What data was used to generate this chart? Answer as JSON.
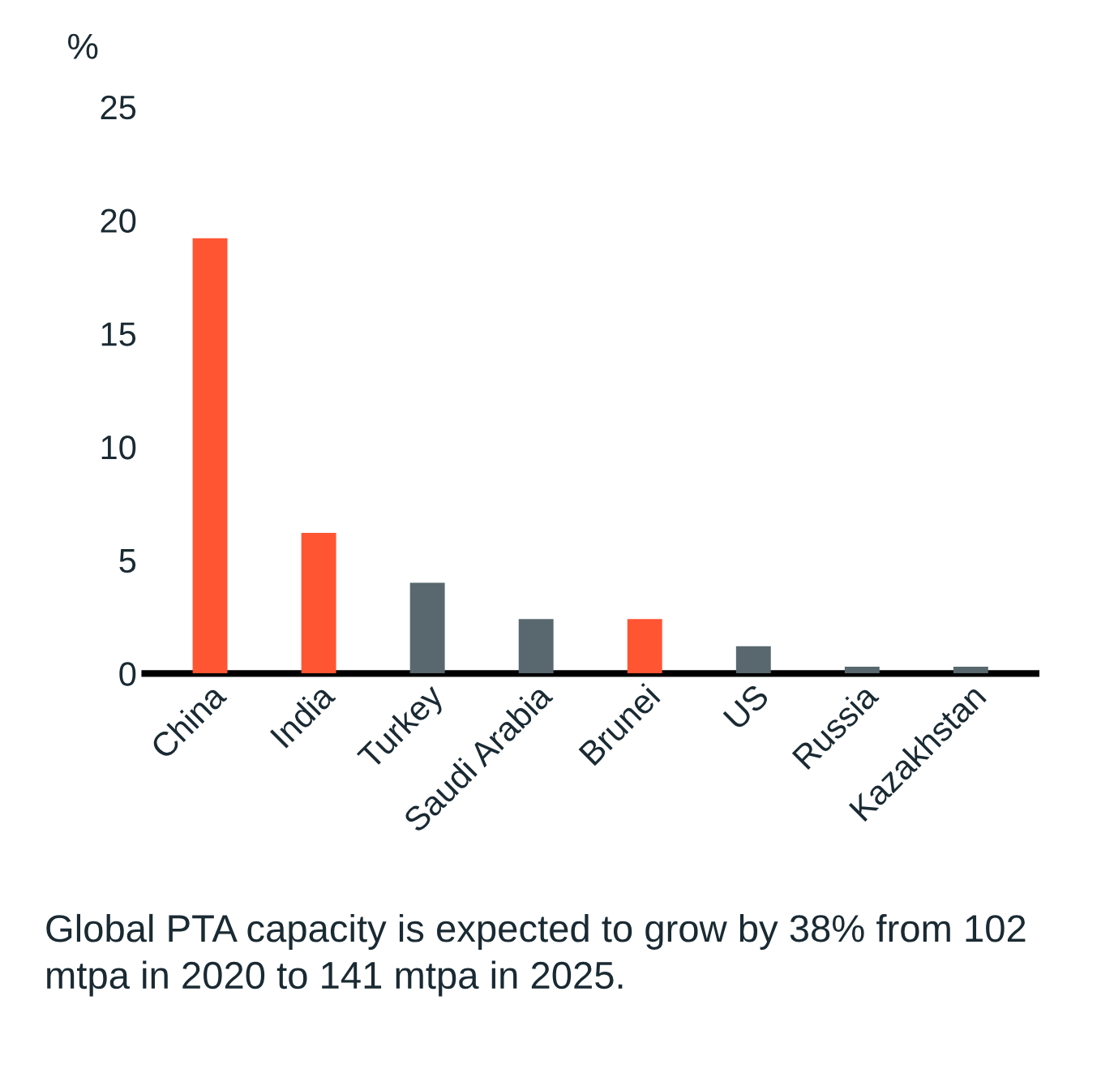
{
  "chart_data": {
    "type": "bar",
    "ylabel": "%",
    "categories": [
      "China",
      "India",
      "Turkey",
      "Saudi Arabia",
      "Brunei",
      "US",
      "Russia",
      "Kazakhstan"
    ],
    "values": [
      19.2,
      6.2,
      4.0,
      2.4,
      2.4,
      1.2,
      0.3,
      0.3
    ],
    "colors": [
      "#ff5533",
      "#ff5533",
      "#59686e",
      "#59686e",
      "#ff5533",
      "#59686e",
      "#59686e",
      "#59686e"
    ],
    "ylim": [
      0,
      25
    ],
    "yticks": [
      0,
      5,
      10,
      15,
      20,
      25
    ],
    "grid": false,
    "annotations": [
      "Global PTA capacity is expected to grow by 38% from 102 mtpa in 2020 to 141 mtpa in 2025."
    ]
  }
}
